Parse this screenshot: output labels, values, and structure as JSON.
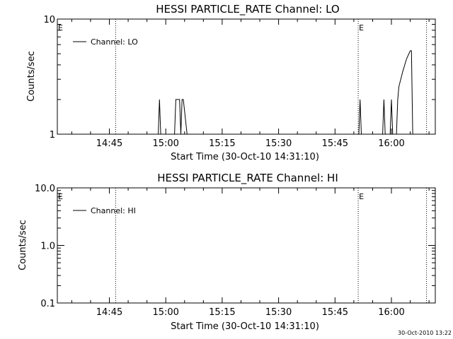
{
  "footer_timestamp": "30-Oct-2010 13:22",
  "chart_data": [
    {
      "type": "line",
      "title": "HESSI PARTICLE_RATE Channel: LO",
      "xlabel": "Start Time (30-Oct-10 14:31:10)",
      "ylabel": "Counts/sec",
      "y_scale": "log",
      "ylim": [
        1,
        10
      ],
      "xlim": [
        "14:31:10",
        "16:11:40"
      ],
      "grid": false,
      "y_ticks": [
        {
          "value": 1,
          "label": "1"
        },
        {
          "value": 10,
          "label": "10"
        }
      ],
      "x_ticks": [
        "14:45",
        "15:00",
        "15:15",
        "15:30",
        "15:45",
        "16:00"
      ],
      "legend": {
        "placement": "top-left",
        "entries": [
          "Channel: LO"
        ]
      },
      "markers": [
        {
          "time": "14:31:10",
          "label": "E",
          "line": false
        },
        {
          "time": "14:46:40",
          "label": "",
          "line": true
        },
        {
          "time": "15:51:10",
          "label": "E",
          "line": true
        },
        {
          "time": "16:09:20",
          "label": "",
          "line": true
        }
      ],
      "series": [
        {
          "name": "Channel: LO",
          "x": [
            "14:31:10",
            "14:58:00",
            "14:58:20",
            "14:58:40",
            "14:59:00",
            "15:02:20",
            "15:02:40",
            "15:03:40",
            "15:04:00",
            "15:04:20",
            "15:04:40",
            "15:05:40",
            "15:06:00",
            "15:51:20",
            "15:51:40",
            "15:52:00",
            "15:57:40",
            "15:58:00",
            "15:58:20",
            "15:59:40",
            "16:00:00",
            "16:00:20",
            "16:01:20",
            "16:01:40",
            "16:02:00",
            "16:03:00",
            "16:04:00",
            "16:05:00",
            "16:05:20",
            "16:05:40",
            "16:11:40"
          ],
          "y": [
            1,
            1,
            2,
            1,
            1,
            1,
            2,
            2,
            1,
            2,
            2,
            1,
            1,
            1,
            2,
            1,
            1,
            2,
            1,
            1,
            2,
            1,
            1,
            2,
            2.6,
            3.5,
            4.5,
            5.3,
            5.3,
            1,
            1
          ]
        }
      ]
    },
    {
      "type": "line",
      "title": "HESSI PARTICLE_RATE Channel: HI",
      "xlabel": "Start Time (30-Oct-10 14:31:10)",
      "ylabel": "Counts/sec",
      "y_scale": "log",
      "ylim": [
        0.1,
        10
      ],
      "xlim": [
        "14:31:10",
        "16:11:40"
      ],
      "grid": false,
      "y_ticks": [
        {
          "value": 0.1,
          "label": "0.1"
        },
        {
          "value": 1,
          "label": "1.0"
        },
        {
          "value": 10,
          "label": "10.0"
        }
      ],
      "x_ticks": [
        "14:45",
        "15:00",
        "15:15",
        "15:30",
        "15:45",
        "16:00"
      ],
      "legend": {
        "placement": "top-left",
        "entries": [
          "Channel: HI"
        ]
      },
      "markers": [
        {
          "time": "14:31:10",
          "label": "E",
          "line": false
        },
        {
          "time": "14:46:40",
          "label": "",
          "line": true
        },
        {
          "time": "15:51:10",
          "label": "E",
          "line": true
        },
        {
          "time": "16:09:20",
          "label": "",
          "line": true
        }
      ],
      "series": [
        {
          "name": "Channel: HI",
          "x": [],
          "y": []
        }
      ]
    }
  ]
}
